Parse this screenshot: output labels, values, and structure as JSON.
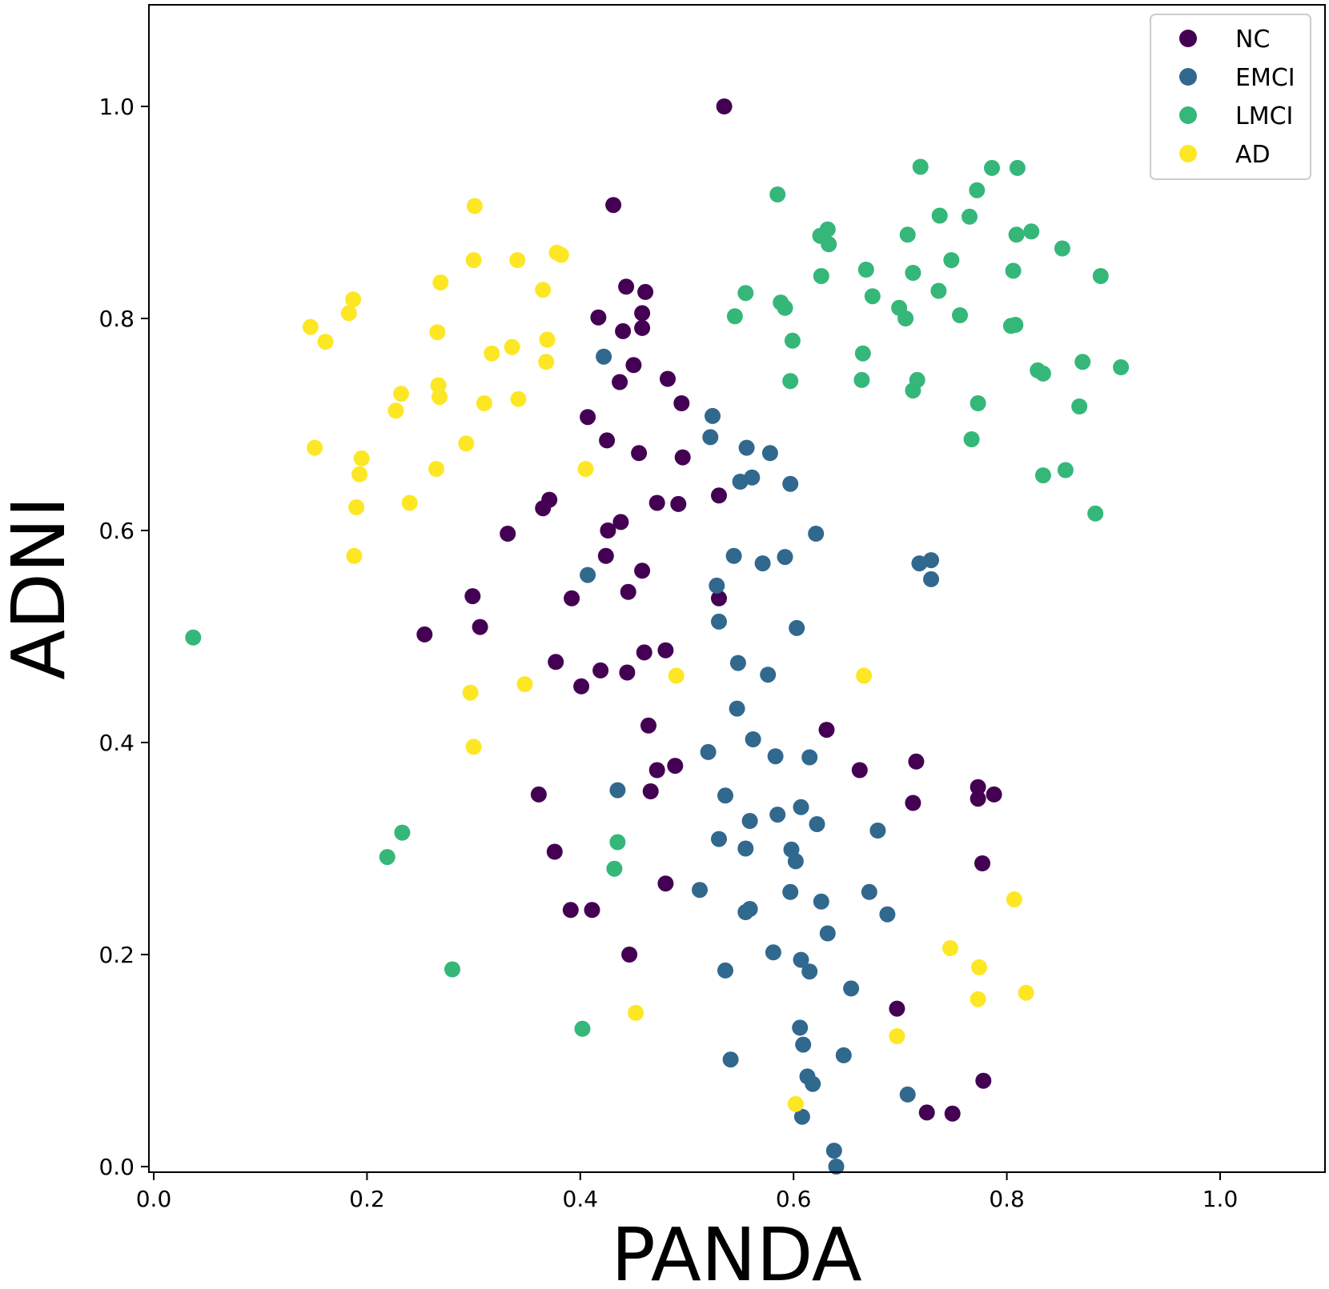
{
  "chart_data": {
    "type": "scatter",
    "title": "",
    "xlabel": "PANDA",
    "ylabel": "ADNI",
    "xlim": [
      -0.01,
      1.1
    ],
    "ylim": [
      -0.01,
      1.1
    ],
    "xticks": [
      "0.0",
      "0.2",
      "0.4",
      "0.6",
      "0.8",
      "1.0"
    ],
    "yticks": [
      "0.0",
      "0.2",
      "0.4",
      "0.6",
      "0.8",
      "1.0"
    ],
    "grid": false,
    "legend_position": "top-right",
    "series": [
      {
        "name": "NC",
        "color": "#440154",
        "points": [
          [
            0.535,
            1.0
          ],
          [
            0.431,
            0.907
          ],
          [
            0.443,
            0.83
          ],
          [
            0.461,
            0.825
          ],
          [
            0.458,
            0.805
          ],
          [
            0.417,
            0.801
          ],
          [
            0.458,
            0.791
          ],
          [
            0.44,
            0.788
          ],
          [
            0.45,
            0.756
          ],
          [
            0.482,
            0.743
          ],
          [
            0.437,
            0.74
          ],
          [
            0.495,
            0.72
          ],
          [
            0.407,
            0.707
          ],
          [
            0.425,
            0.685
          ],
          [
            0.455,
            0.673
          ],
          [
            0.496,
            0.669
          ],
          [
            0.53,
            0.633
          ],
          [
            0.371,
            0.629
          ],
          [
            0.365,
            0.621
          ],
          [
            0.472,
            0.626
          ],
          [
            0.492,
            0.625
          ],
          [
            0.438,
            0.608
          ],
          [
            0.426,
            0.6
          ],
          [
            0.332,
            0.597
          ],
          [
            0.424,
            0.576
          ],
          [
            0.458,
            0.562
          ],
          [
            0.445,
            0.542
          ],
          [
            0.299,
            0.538
          ],
          [
            0.392,
            0.536
          ],
          [
            0.53,
            0.536
          ],
          [
            0.306,
            0.509
          ],
          [
            0.254,
            0.502
          ],
          [
            0.48,
            0.487
          ],
          [
            0.46,
            0.485
          ],
          [
            0.377,
            0.476
          ],
          [
            0.419,
            0.468
          ],
          [
            0.444,
            0.466
          ],
          [
            0.401,
            0.453
          ],
          [
            0.464,
            0.416
          ],
          [
            0.631,
            0.412
          ],
          [
            0.715,
            0.382
          ],
          [
            0.489,
            0.378
          ],
          [
            0.472,
            0.374
          ],
          [
            0.662,
            0.374
          ],
          [
            0.773,
            0.358
          ],
          [
            0.788,
            0.351
          ],
          [
            0.773,
            0.347
          ],
          [
            0.466,
            0.354
          ],
          [
            0.361,
            0.351
          ],
          [
            0.712,
            0.343
          ],
          [
            0.376,
            0.297
          ],
          [
            0.777,
            0.286
          ],
          [
            0.48,
            0.267
          ],
          [
            0.391,
            0.242
          ],
          [
            0.411,
            0.242
          ],
          [
            0.446,
            0.2
          ],
          [
            0.697,
            0.149
          ],
          [
            0.778,
            0.081
          ],
          [
            0.725,
            0.051
          ],
          [
            0.749,
            0.05
          ]
        ]
      },
      {
        "name": "EMCI",
        "color": "#31688e",
        "points": [
          [
            0.422,
            0.764
          ],
          [
            0.524,
            0.708
          ],
          [
            0.522,
            0.688
          ],
          [
            0.556,
            0.678
          ],
          [
            0.578,
            0.673
          ],
          [
            0.561,
            0.65
          ],
          [
            0.55,
            0.646
          ],
          [
            0.597,
            0.644
          ],
          [
            0.621,
            0.597
          ],
          [
            0.544,
            0.576
          ],
          [
            0.592,
            0.575
          ],
          [
            0.571,
            0.569
          ],
          [
            0.718,
            0.569
          ],
          [
            0.729,
            0.572
          ],
          [
            0.407,
            0.558
          ],
          [
            0.729,
            0.554
          ],
          [
            0.528,
            0.548
          ],
          [
            0.53,
            0.514
          ],
          [
            0.603,
            0.508
          ],
          [
            0.548,
            0.475
          ],
          [
            0.576,
            0.464
          ],
          [
            0.547,
            0.432
          ],
          [
            0.562,
            0.403
          ],
          [
            0.52,
            0.391
          ],
          [
            0.583,
            0.387
          ],
          [
            0.615,
            0.386
          ],
          [
            0.435,
            0.355
          ],
          [
            0.536,
            0.35
          ],
          [
            0.607,
            0.339
          ],
          [
            0.585,
            0.332
          ],
          [
            0.559,
            0.326
          ],
          [
            0.622,
            0.323
          ],
          [
            0.679,
            0.317
          ],
          [
            0.53,
            0.309
          ],
          [
            0.555,
            0.3
          ],
          [
            0.598,
            0.299
          ],
          [
            0.602,
            0.288
          ],
          [
            0.671,
            0.259
          ],
          [
            0.512,
            0.261
          ],
          [
            0.597,
            0.259
          ],
          [
            0.626,
            0.25
          ],
          [
            0.559,
            0.243
          ],
          [
            0.555,
            0.24
          ],
          [
            0.688,
            0.238
          ],
          [
            0.632,
            0.22
          ],
          [
            0.581,
            0.202
          ],
          [
            0.607,
            0.195
          ],
          [
            0.536,
            0.185
          ],
          [
            0.615,
            0.184
          ],
          [
            0.654,
            0.168
          ],
          [
            0.606,
            0.131
          ],
          [
            0.609,
            0.115
          ],
          [
            0.541,
            0.101
          ],
          [
            0.647,
            0.105
          ],
          [
            0.613,
            0.085
          ],
          [
            0.618,
            0.078
          ],
          [
            0.707,
            0.068
          ],
          [
            0.608,
            0.047
          ],
          [
            0.638,
            0.015
          ],
          [
            0.64,
            0.0
          ]
        ]
      },
      {
        "name": "LMCI",
        "color": "#35b779",
        "points": [
          [
            0.719,
            0.943
          ],
          [
            0.786,
            0.942
          ],
          [
            0.81,
            0.942
          ],
          [
            0.772,
            0.921
          ],
          [
            0.585,
            0.917
          ],
          [
            0.737,
            0.897
          ],
          [
            0.765,
            0.896
          ],
          [
            0.632,
            0.884
          ],
          [
            0.625,
            0.878
          ],
          [
            0.707,
            0.879
          ],
          [
            0.809,
            0.879
          ],
          [
            0.823,
            0.882
          ],
          [
            0.633,
            0.87
          ],
          [
            0.852,
            0.866
          ],
          [
            0.748,
            0.855
          ],
          [
            0.668,
            0.846
          ],
          [
            0.712,
            0.843
          ],
          [
            0.806,
            0.845
          ],
          [
            0.626,
            0.84
          ],
          [
            0.888,
            0.84
          ],
          [
            0.736,
            0.826
          ],
          [
            0.555,
            0.824
          ],
          [
            0.674,
            0.821
          ],
          [
            0.588,
            0.815
          ],
          [
            0.592,
            0.81
          ],
          [
            0.699,
            0.81
          ],
          [
            0.545,
            0.802
          ],
          [
            0.705,
            0.8
          ],
          [
            0.756,
            0.803
          ],
          [
            0.804,
            0.793
          ],
          [
            0.808,
            0.794
          ],
          [
            0.599,
            0.779
          ],
          [
            0.665,
            0.767
          ],
          [
            0.871,
            0.759
          ],
          [
            0.907,
            0.754
          ],
          [
            0.829,
            0.751
          ],
          [
            0.834,
            0.748
          ],
          [
            0.597,
            0.741
          ],
          [
            0.664,
            0.742
          ],
          [
            0.716,
            0.742
          ],
          [
            0.712,
            0.732
          ],
          [
            0.773,
            0.72
          ],
          [
            0.868,
            0.717
          ],
          [
            0.767,
            0.686
          ],
          [
            0.855,
            0.657
          ],
          [
            0.834,
            0.652
          ],
          [
            0.883,
            0.616
          ],
          [
            0.037,
            0.499
          ],
          [
            0.233,
            0.315
          ],
          [
            0.219,
            0.292
          ],
          [
            0.435,
            0.306
          ],
          [
            0.432,
            0.281
          ],
          [
            0.28,
            0.186
          ],
          [
            0.402,
            0.13
          ]
        ]
      },
      {
        "name": "AD",
        "color": "#fde725",
        "points": [
          [
            0.301,
            0.906
          ],
          [
            0.378,
            0.862
          ],
          [
            0.382,
            0.86
          ],
          [
            0.3,
            0.855
          ],
          [
            0.341,
            0.855
          ],
          [
            0.269,
            0.834
          ],
          [
            0.365,
            0.827
          ],
          [
            0.187,
            0.818
          ],
          [
            0.183,
            0.805
          ],
          [
            0.147,
            0.792
          ],
          [
            0.266,
            0.787
          ],
          [
            0.369,
            0.78
          ],
          [
            0.161,
            0.778
          ],
          [
            0.336,
            0.773
          ],
          [
            0.317,
            0.767
          ],
          [
            0.368,
            0.759
          ],
          [
            0.267,
            0.737
          ],
          [
            0.232,
            0.729
          ],
          [
            0.268,
            0.726
          ],
          [
            0.342,
            0.724
          ],
          [
            0.31,
            0.72
          ],
          [
            0.227,
            0.713
          ],
          [
            0.293,
            0.682
          ],
          [
            0.151,
            0.678
          ],
          [
            0.195,
            0.668
          ],
          [
            0.265,
            0.658
          ],
          [
            0.405,
            0.658
          ],
          [
            0.193,
            0.653
          ],
          [
            0.24,
            0.626
          ],
          [
            0.19,
            0.622
          ],
          [
            0.188,
            0.576
          ],
          [
            0.49,
            0.463
          ],
          [
            0.666,
            0.463
          ],
          [
            0.348,
            0.455
          ],
          [
            0.297,
            0.447
          ],
          [
            0.3,
            0.396
          ],
          [
            0.807,
            0.252
          ],
          [
            0.747,
            0.206
          ],
          [
            0.774,
            0.188
          ],
          [
            0.818,
            0.164
          ],
          [
            0.773,
            0.158
          ],
          [
            0.452,
            0.145
          ],
          [
            0.697,
            0.123
          ],
          [
            0.602,
            0.059
          ]
        ]
      }
    ]
  }
}
